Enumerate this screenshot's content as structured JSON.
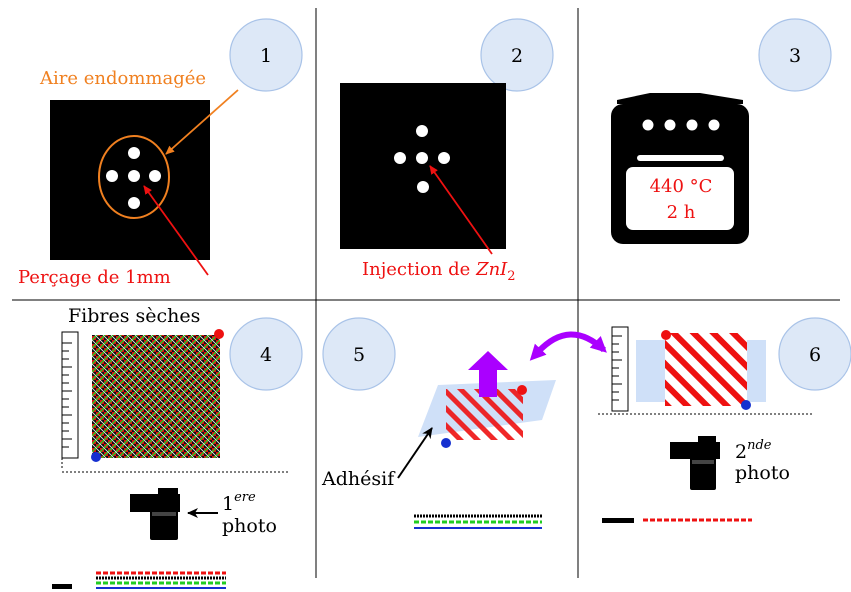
{
  "steps": [
    "1",
    "2",
    "3",
    "4",
    "5",
    "6"
  ],
  "labels": {
    "damaged_area": "Aire endommagée",
    "drilling": "Perçage de 1mm",
    "injection_prefix": "Injection de ",
    "injection_formula": "ZnI",
    "injection_sub": "2",
    "oven_temp": "440 °C",
    "oven_time": "2 h",
    "dry_fibres": "Fibres sèches",
    "adhesive": "Adhésif",
    "photo1_num": "1",
    "photo1_sup": "ere",
    "photo1_word": "photo",
    "photo2_num": "2",
    "photo2_sup": "nde",
    "photo2_word": "photo"
  },
  "colors": {
    "orange": "#f08020",
    "red": "#ee1111",
    "circle_fill": "#dde8f7",
    "circle_stroke": "#a9c3e8",
    "purple": "#aa00ff",
    "blue": "#1530d0",
    "green": "#22cc22",
    "adhesive": "#cfe0f8"
  },
  "icons": [
    "oven-icon",
    "camera-icon",
    "ruler-icon",
    "arrow-icon"
  ]
}
